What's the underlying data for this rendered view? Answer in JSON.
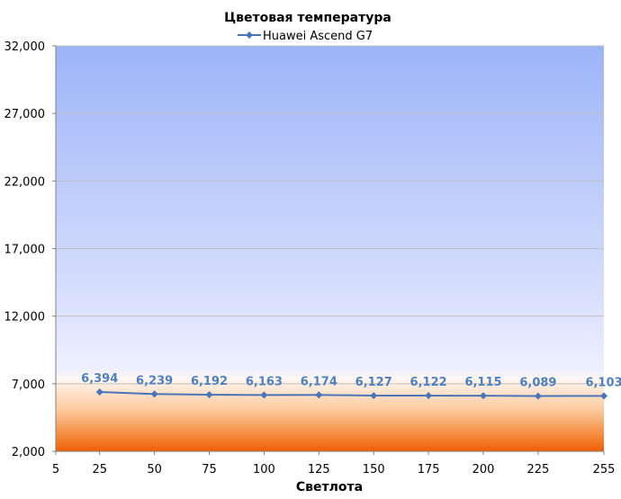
{
  "chart_data": {
    "type": "line",
    "title": "Цветовая температура",
    "xlabel": "Светлота",
    "ylabel": "",
    "x": [
      25,
      50,
      75,
      100,
      125,
      150,
      175,
      200,
      225,
      255
    ],
    "series": [
      {
        "name": "Huawei Ascend G7",
        "values": [
          6394,
          6239,
          6192,
          6163,
          6174,
          6127,
          6122,
          6115,
          6089,
          6103
        ],
        "color": "#4a76b8"
      }
    ],
    "data_labels": [
      "6,394",
      "6,239",
      "6,192",
      "6,163",
      "6,174",
      "6,127",
      "6,122",
      "6,115",
      "6,089",
      "6,103"
    ],
    "xticks": [
      "5",
      "25",
      "50",
      "75",
      "100",
      "125",
      "150",
      "175",
      "200",
      "225",
      "255"
    ],
    "yticks": [
      "2,000",
      "7,000",
      "12,000",
      "17,000",
      "22,000",
      "27,000",
      "32,000"
    ],
    "ytick_values": [
      2000,
      7000,
      12000,
      17000,
      22000,
      27000,
      32000
    ],
    "ylim": [
      2000,
      32000
    ],
    "xlim": [
      5,
      255
    ],
    "grid": true,
    "legend_position": "top-center",
    "background_colors": {
      "top": "#9cb4f8",
      "mid": "#e8ecfe",
      "warm_light": "#fff4ec",
      "warm_dark": "#f06000"
    }
  }
}
